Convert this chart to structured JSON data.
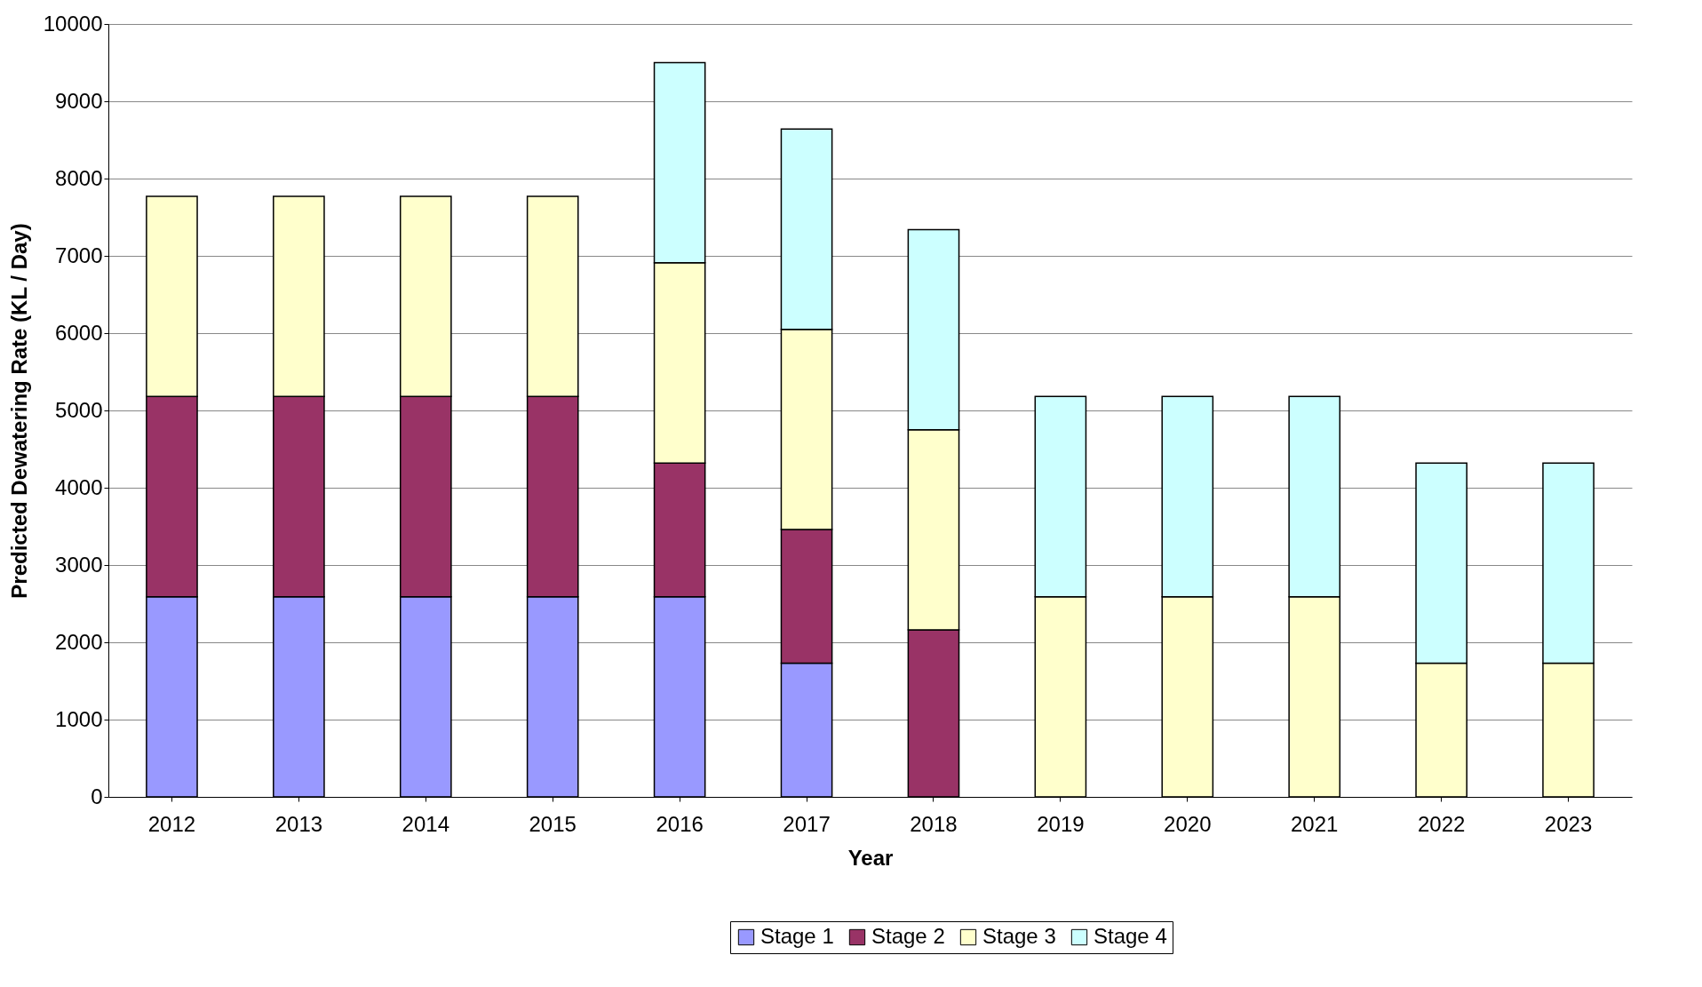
{
  "chart_data": {
    "type": "bar",
    "stacked": true,
    "xlabel": "Year",
    "ylabel": "Predicted Dewatering Rate (KL / Day)",
    "categories": [
      "2012",
      "2013",
      "2014",
      "2015",
      "2016",
      "2017",
      "2018",
      "2019",
      "2020",
      "2021",
      "2022",
      "2023"
    ],
    "series": [
      {
        "name": "Stage 1",
        "color": "#9999ff",
        "values": [
          2590,
          2590,
          2590,
          2590,
          2590,
          1730,
          null,
          null,
          null,
          null,
          null,
          null
        ]
      },
      {
        "name": "Stage 2",
        "color": "#993366",
        "values": [
          2590,
          2590,
          2590,
          2590,
          1730,
          1730,
          2160,
          null,
          null,
          null,
          null,
          null
        ]
      },
      {
        "name": "Stage 3",
        "color": "#ffffcc",
        "values": [
          2590,
          2590,
          2590,
          2590,
          2590,
          2590,
          2590,
          2590,
          2590,
          2590,
          1730,
          1730
        ]
      },
      {
        "name": "Stage 4",
        "color": "#ccffff",
        "values": [
          null,
          null,
          null,
          null,
          2590,
          2590,
          2590,
          2590,
          2590,
          2590,
          2590,
          2590
        ]
      }
    ],
    "ylim": [
      0,
      10000
    ],
    "yticks": [
      0,
      1000,
      2000,
      3000,
      4000,
      5000,
      6000,
      7000,
      8000,
      9000,
      10000
    ],
    "grid": "y",
    "legend": "bottom"
  }
}
